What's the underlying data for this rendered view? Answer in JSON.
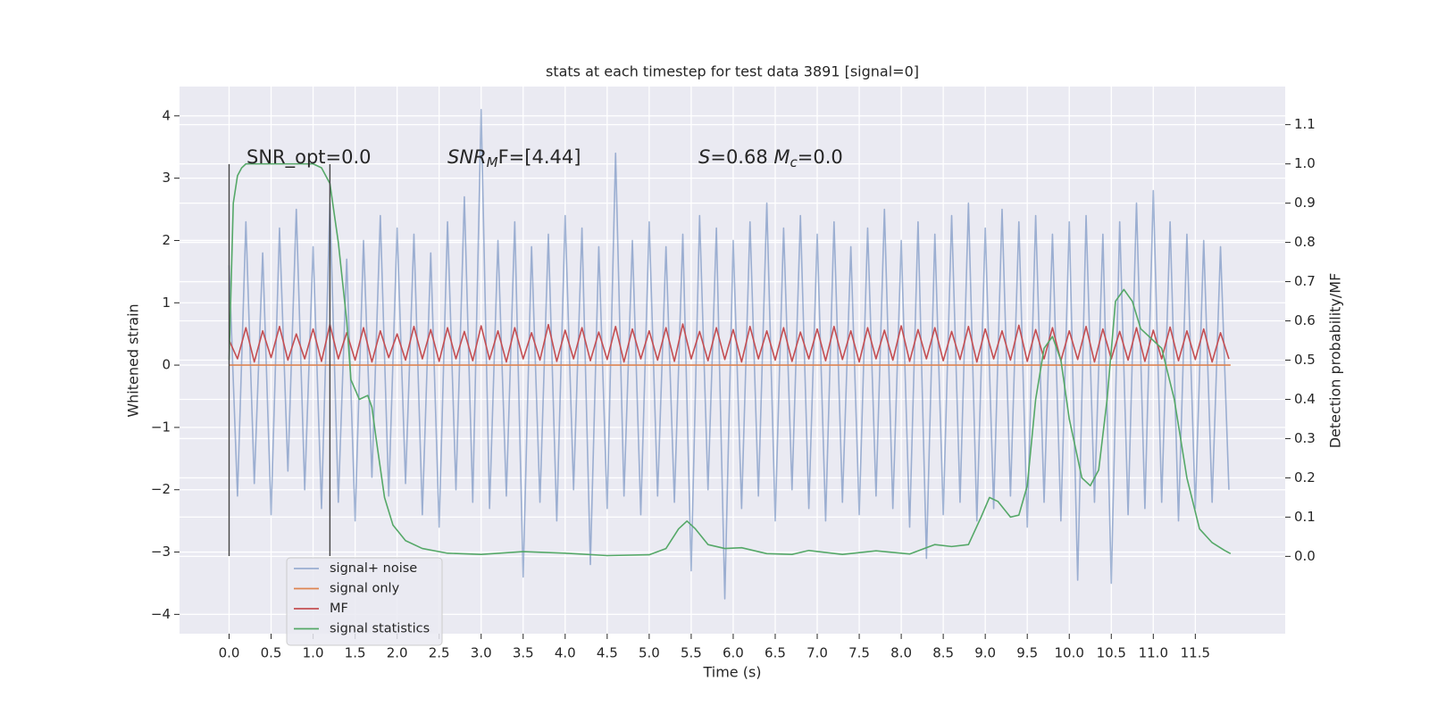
{
  "chart_data": {
    "type": "line",
    "title": "stats at each timestep for test data 3891 [signal=0]",
    "xlabel": "Time (s)",
    "ylabel": "Whitened strain",
    "y2label": "Detection probability/MF",
    "annotations": [
      [
        "SNR_opt=0.0"
      ],
      [
        "SNR",
        "M",
        "F=[4.44]"
      ],
      [
        "S",
        "=0.68   ",
        "M",
        "c",
        "=0.0"
      ]
    ],
    "vlines": [
      0,
      1.2
    ],
    "vline_color": "#444444",
    "xlim": [
      -0.59,
      12.57
    ],
    "ylim": [
      -4.31,
      4.47
    ],
    "y2lim": [
      -0.197,
      1.197
    ],
    "xticks": [
      {
        "value": 0,
        "label": "0.0"
      },
      0.5,
      {
        "value": 1,
        "label": "1.0"
      },
      1.5,
      {
        "value": 2,
        "label": "2.0"
      },
      2.5,
      {
        "value": 3,
        "label": "3.0"
      },
      3.5,
      {
        "value": 4,
        "label": "4.0"
      },
      4.5,
      {
        "value": 5,
        "label": "5.0"
      },
      5.5,
      {
        "value": 6,
        "label": "6.0"
      },
      6.5,
      {
        "value": 7,
        "label": "7.0"
      },
      7.5,
      {
        "value": 8,
        "label": "8.0"
      },
      8.5,
      {
        "value": 9,
        "label": "9.0"
      },
      9.5,
      {
        "value": 10,
        "label": "10.0"
      },
      10.5,
      {
        "value": 11,
        "label": "11.0"
      },
      11.5
    ],
    "yticks": [
      {
        "value": -4,
        "label": "−4"
      },
      {
        "value": -3,
        "label": "−3"
      },
      {
        "value": -2,
        "label": "−2"
      },
      {
        "value": -1,
        "label": "−1"
      },
      0,
      1,
      2,
      3,
      4
    ],
    "y2ticks": [
      {
        "value": 0,
        "label": "0.0"
      },
      0.1,
      0.2,
      0.3,
      0.4,
      0.5,
      0.6,
      0.7,
      0.8,
      0.9,
      {
        "value": 1,
        "label": "1.0"
      },
      1.1
    ],
    "grid": true,
    "legend": "lower left",
    "x": [
      0,
      0.1,
      0.2,
      0.3,
      0.4,
      0.5,
      0.6,
      0.7,
      0.8,
      0.9,
      1,
      1.1,
      1.2,
      1.3,
      1.4,
      1.5,
      1.6,
      1.7,
      1.8,
      1.9,
      2,
      2.1,
      2.2,
      2.3,
      2.4,
      2.5,
      2.6,
      2.7,
      2.8,
      2.9,
      3,
      3.1,
      3.2,
      3.3,
      3.4,
      3.5,
      3.6,
      3.7,
      3.8,
      3.9,
      4,
      4.1,
      4.2,
      4.3,
      4.4,
      4.5,
      4.6,
      4.7,
      4.8,
      4.9,
      5,
      5.1,
      5.2,
      5.3,
      5.4,
      5.5,
      5.6,
      5.7,
      5.8,
      5.9,
      6,
      6.1,
      6.2,
      6.3,
      6.4,
      6.5,
      6.6,
      6.7,
      6.8,
      6.9,
      7,
      7.1,
      7.2,
      7.3,
      7.4,
      7.5,
      7.6,
      7.7,
      7.8,
      7.9,
      8,
      8.1,
      8.2,
      8.3,
      8.4,
      8.5,
      8.6,
      8.7,
      8.8,
      8.9,
      9,
      9.1,
      9.2,
      9.3,
      9.4,
      9.5,
      9.6,
      9.7,
      9.8,
      9.9,
      10,
      10.1,
      10.2,
      10.3,
      10.4,
      10.5,
      10.6,
      10.7,
      10.8,
      10.9,
      11,
      11.1,
      11.2,
      11.3,
      11.4,
      11.5,
      11.6,
      11.7,
      11.8,
      11.9
    ],
    "series": [
      {
        "name": "signal+ noise",
        "color": "#4c72b0",
        "opacity": 0.5,
        "values": [
          1.6,
          -2.1,
          2.3,
          -1.9,
          1.8,
          -2.4,
          2.2,
          -1.7,
          2.5,
          -2.0,
          1.9,
          -2.3,
          2.6,
          -2.2,
          1.7,
          -2.5,
          2.0,
          -1.8,
          2.4,
          -2.1,
          2.2,
          -1.9,
          2.1,
          -2.4,
          1.8,
          -2.6,
          2.3,
          -2.0,
          2.7,
          -2.2,
          4.1,
          -2.3,
          2.0,
          -2.1,
          2.3,
          -3.4,
          1.9,
          -2.2,
          2.1,
          -2.5,
          2.4,
          -2.0,
          2.2,
          -3.2,
          1.9,
          -2.3,
          3.4,
          -2.1,
          2.0,
          -2.4,
          2.3,
          -2.1,
          1.9,
          -2.2,
          2.1,
          -3.3,
          2.4,
          -2.0,
          2.2,
          -3.75,
          2.0,
          -2.3,
          2.3,
          -2.1,
          2.6,
          -2.5,
          2.2,
          -2.0,
          2.4,
          -2.3,
          2.1,
          -2.5,
          2.3,
          -2.2,
          1.9,
          -2.4,
          2.2,
          -2.1,
          2.5,
          -2.3,
          2.0,
          -2.6,
          2.3,
          -3.1,
          2.1,
          -2.4,
          2.4,
          -2.2,
          2.6,
          -2.5,
          2.2,
          -2.3,
          2.5,
          -2.1,
          2.3,
          -2.6,
          2.4,
          -2.2,
          2.1,
          -2.5,
          2.3,
          -3.45,
          2.4,
          -2.2,
          2.1,
          -3.5,
          2.3,
          -2.4,
          2.6,
          -2.3,
          2.8,
          -2.2,
          2.3,
          -2.5,
          2.1,
          -2.3,
          2.0,
          -2.2,
          1.9,
          -2.0
        ]
      },
      {
        "name": "signal only",
        "color": "#dd8452",
        "x": [
          0,
          11.92
        ],
        "values": [
          0,
          0
        ]
      },
      {
        "name": "MF",
        "color": "#c44e52",
        "values": [
          0.4,
          0.1,
          0.6,
          0.05,
          0.55,
          0.12,
          0.62,
          0.08,
          0.5,
          0.1,
          0.58,
          0.06,
          0.65,
          0.1,
          0.52,
          0.08,
          0.6,
          0.05,
          0.55,
          0.12,
          0.5,
          0.08,
          0.62,
          0.1,
          0.57,
          0.06,
          0.6,
          0.1,
          0.54,
          0.07,
          0.63,
          0.09,
          0.55,
          0.05,
          0.6,
          0.1,
          0.52,
          0.08,
          0.65,
          0.06,
          0.56,
          0.1,
          0.6,
          0.07,
          0.53,
          0.09,
          0.62,
          0.05,
          0.58,
          0.1,
          0.55,
          0.08,
          0.6,
          0.06,
          0.66,
          0.1,
          0.54,
          0.07,
          0.6,
          0.09,
          0.57,
          0.05,
          0.62,
          0.1,
          0.55,
          0.08,
          0.6,
          0.06,
          0.53,
          0.1,
          0.58,
          0.07,
          0.62,
          0.09,
          0.55,
          0.05,
          0.6,
          0.1,
          0.56,
          0.08,
          0.63,
          0.06,
          0.57,
          0.1,
          0.6,
          0.07,
          0.54,
          0.09,
          0.62,
          0.05,
          0.58,
          0.1,
          0.55,
          0.08,
          0.64,
          0.06,
          0.57,
          0.1,
          0.6,
          0.07,
          0.55,
          0.09,
          0.62,
          0.05,
          0.58,
          0.1,
          0.54,
          0.08,
          0.6,
          0.06,
          0.56,
          0.1,
          0.61,
          0.07,
          0.55,
          0.09,
          0.58,
          0.05,
          0.52,
          0.1
        ]
      },
      {
        "name": "signal statistics",
        "color": "#55a868",
        "axis": "y2",
        "x": [
          0,
          0.05,
          0.1,
          0.15,
          0.2,
          0.4,
          0.6,
          0.8,
          1,
          1.1,
          1.2,
          1.3,
          1.4,
          1.45,
          1.55,
          1.65,
          1.7,
          1.75,
          1.85,
          1.95,
          2.1,
          2.3,
          2.6,
          3,
          3.5,
          4,
          4.5,
          5,
          5.2,
          5.35,
          5.45,
          5.55,
          5.7,
          5.9,
          6.1,
          6.4,
          6.7,
          6.9,
          7.3,
          7.7,
          8.1,
          8.4,
          8.6,
          8.8,
          8.95,
          9.05,
          9.15,
          9.3,
          9.4,
          9.5,
          9.6,
          9.7,
          9.8,
          9.9,
          10,
          10.15,
          10.25,
          10.35,
          10.45,
          10.55,
          10.65,
          10.75,
          10.85,
          11,
          11.1,
          11.25,
          11.4,
          11.55,
          11.7,
          11.85,
          11.92
        ],
        "values": [
          0.5,
          0.9,
          0.97,
          0.99,
          1.0,
          1.0,
          1.0,
          1.0,
          1.0,
          0.99,
          0.95,
          0.8,
          0.6,
          0.45,
          0.4,
          0.41,
          0.38,
          0.3,
          0.15,
          0.08,
          0.04,
          0.02,
          0.008,
          0.005,
          0.012,
          0.008,
          0.002,
          0.004,
          0.02,
          0.07,
          0.09,
          0.07,
          0.03,
          0.02,
          0.022,
          0.007,
          0.005,
          0.015,
          0.005,
          0.014,
          0.006,
          0.03,
          0.025,
          0.03,
          0.1,
          0.15,
          0.14,
          0.1,
          0.105,
          0.18,
          0.4,
          0.53,
          0.56,
          0.5,
          0.35,
          0.2,
          0.18,
          0.22,
          0.4,
          0.65,
          0.68,
          0.65,
          0.58,
          0.55,
          0.53,
          0.4,
          0.2,
          0.07,
          0.035,
          0.015,
          0.007
        ]
      }
    ]
  }
}
